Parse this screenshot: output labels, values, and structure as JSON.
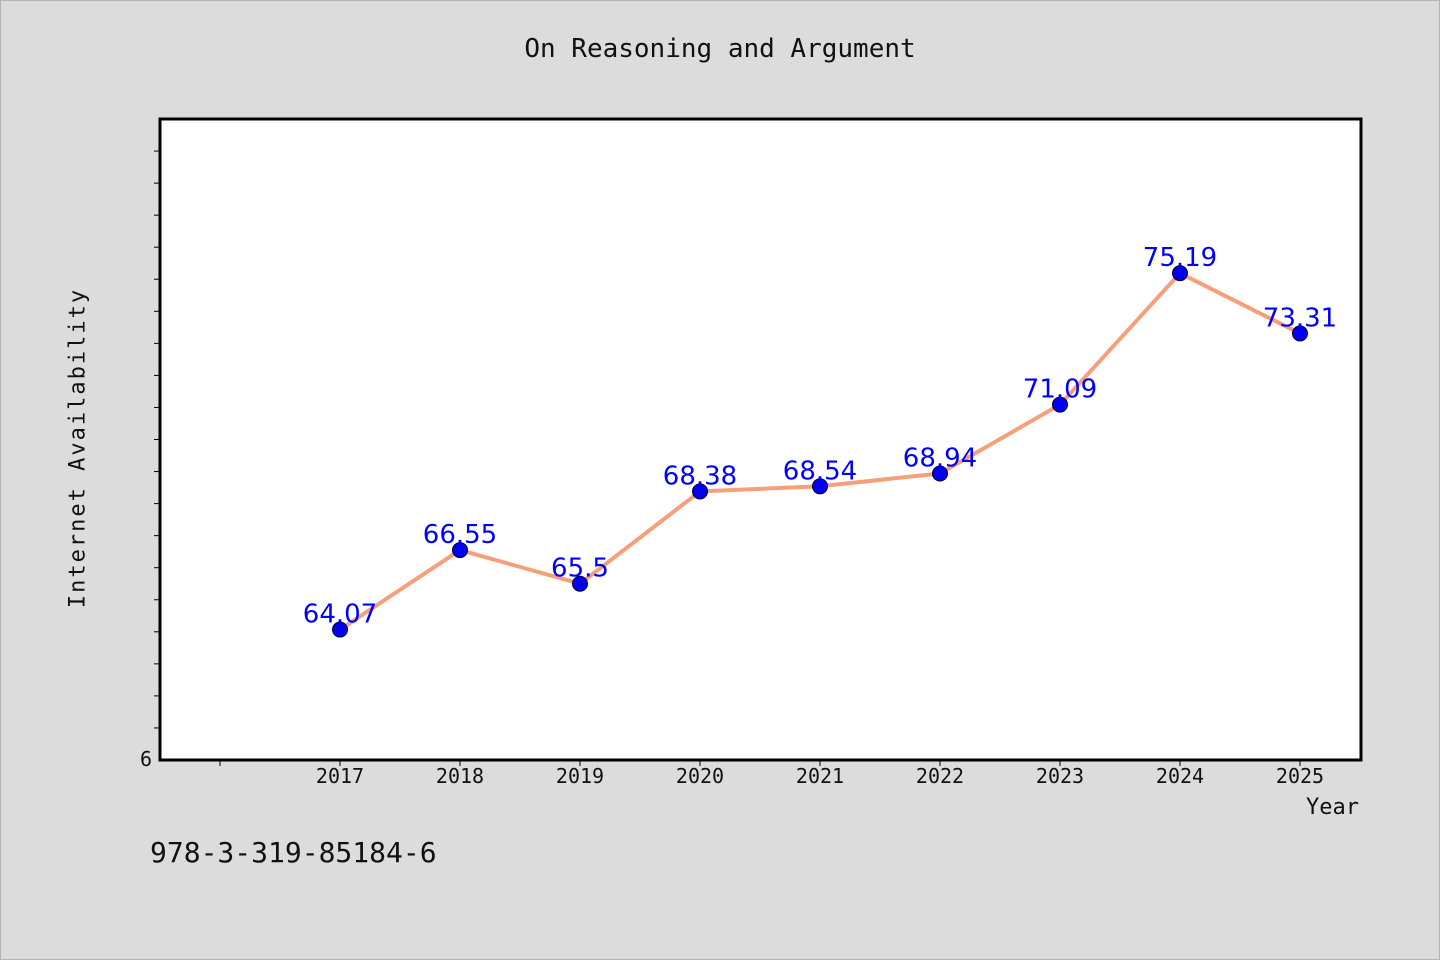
{
  "chart_data": {
    "type": "line",
    "title": "On Reasoning and Argument",
    "xlabel": "Year",
    "ylabel": "Internet Availability",
    "categories": [
      "2017",
      "2018",
      "2019",
      "2020",
      "2021",
      "2022",
      "2023",
      "2024",
      "2025"
    ],
    "series": [
      {
        "values": [
          64.07,
          66.55,
          65.5,
          68.38,
          68.54,
          68.94,
          71.09,
          75.19,
          73.31
        ],
        "labels": [
          "64.07",
          "66.55",
          "65.5",
          "68.38",
          "68.54",
          "68.94",
          "71.09",
          "75.19",
          "73.31"
        ],
        "line_color": "#f5a07a",
        "marker_color": "#0000ee"
      }
    ],
    "ylim": [
      60,
      80
    ],
    "y_tick_labels": [
      "6"
    ],
    "label_color": "#0000ff",
    "grid": false
  },
  "footer": {
    "code": "978-3-319-85184-6"
  }
}
